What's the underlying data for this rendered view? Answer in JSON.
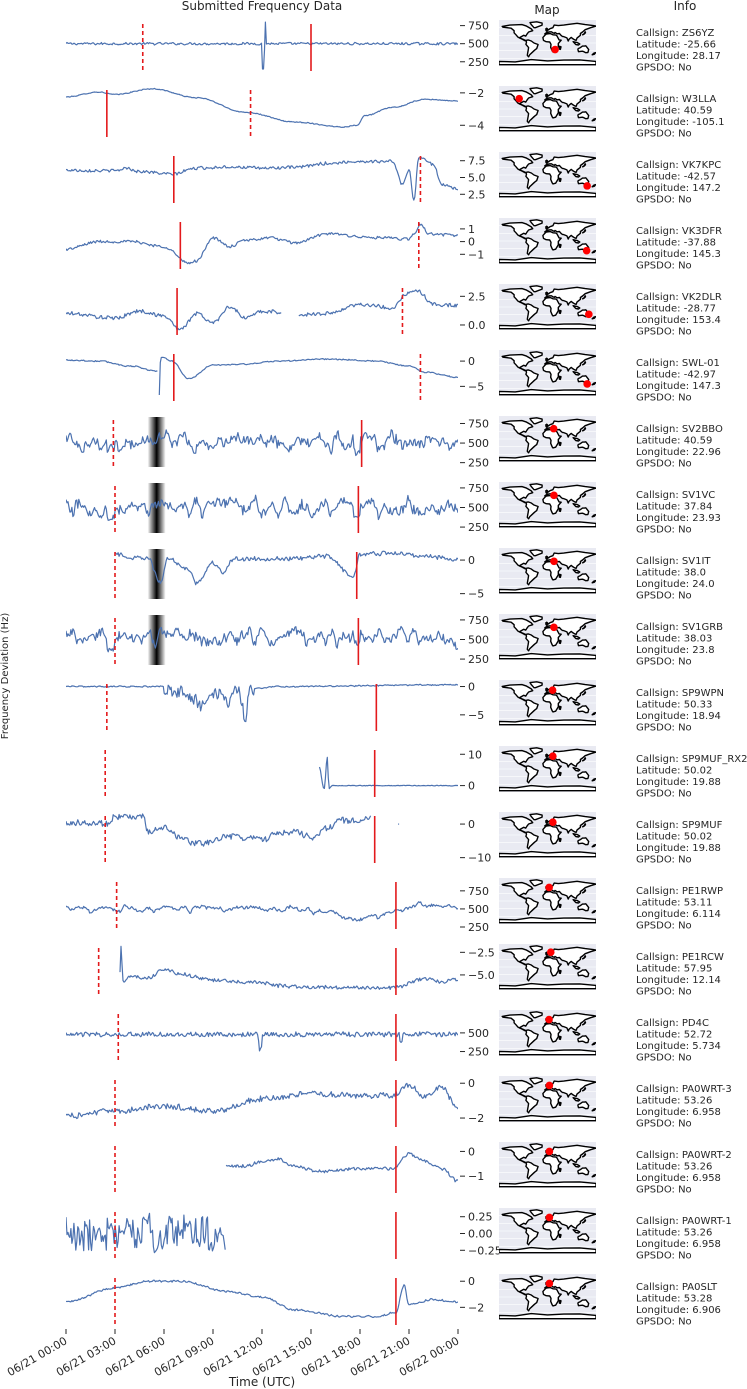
{
  "headers": {
    "title": "Submitted Frequency Data",
    "map": "Map",
    "info": "Info",
    "ylabel": "Frequency Deviation (Hz)",
    "xlabel": "Time (UTC)"
  },
  "colors": {
    "line": "#4c72b0",
    "solid_marker": "#e31a1c",
    "dashed_marker": "#e31a1c",
    "map_bg": "#e9eaf2",
    "station_dot": "#ff0000"
  },
  "chart_data": {
    "type": "line",
    "title": "Submitted Frequency Data",
    "xlabel": "Time (UTC)",
    "ylabel": "Frequency Deviation (Hz)",
    "x_range": [
      "06/21 00:00",
      "06/22 00:00"
    ],
    "x_ticks": [
      "06/21 00:00",
      "06/21 03:00",
      "06/21 06:00",
      "06/21 09:00",
      "06/21 12:00",
      "06/21 15:00",
      "06/21 18:00",
      "06/21 21:00",
      "06/22 00:00"
    ],
    "grid": false,
    "stations": [
      {
        "callsign": "ZS6YZ",
        "lat": "-25.66",
        "lon": "28.17",
        "gpsdo": "No",
        "ylim": [
          150,
          800
        ],
        "yticks": [
          "750",
          "500",
          "250"
        ],
        "ytick_values": [
          750,
          500,
          250
        ],
        "solid_hour": 15.0,
        "dashed_hour": 4.7,
        "profile": "flat500",
        "shading": null
      },
      {
        "callsign": "W3LLA",
        "lat": "40.59",
        "lon": "-105.1",
        "gpsdo": "No",
        "ylim": [
          -4.6,
          -1.7
        ],
        "yticks": [
          "−2",
          "−4"
        ],
        "ytick_values": [
          -2,
          -4
        ],
        "solid_hour": 2.5,
        "dashed_hour": 11.3,
        "profile": "w3lla",
        "shading": null
      },
      {
        "callsign": "VK7KPC",
        "lat": "-42.57",
        "lon": "147.2",
        "gpsdo": "No",
        "ylim": [
          1.5,
          8.5
        ],
        "yticks": [
          "7.5",
          "5.0",
          "2.5"
        ],
        "ytick_values": [
          7.5,
          5.0,
          2.5
        ],
        "solid_hour": 6.6,
        "dashed_hour": 21.7,
        "profile": "vk7kpc",
        "shading": null
      },
      {
        "callsign": "VK3DFR",
        "lat": "-37.88",
        "lon": "145.3",
        "gpsdo": "No",
        "ylim": [
          -2.0,
          1.7
        ],
        "yticks": [
          "1",
          "0",
          "−1"
        ],
        "ytick_values": [
          1,
          0,
          -1
        ],
        "solid_hour": 7.0,
        "dashed_hour": 21.6,
        "profile": "vk3dfr",
        "shading": null
      },
      {
        "callsign": "VK2DLR",
        "lat": "-28.77",
        "lon": "153.4",
        "gpsdo": "No",
        "ylim": [
          -0.7,
          3.4
        ],
        "yticks": [
          "2.5",
          "0.0"
        ],
        "ytick_values": [
          2.5,
          0.0
        ],
        "solid_hour": 6.8,
        "dashed_hour": 20.6,
        "profile": "vk2dlr",
        "shading": null
      },
      {
        "callsign": "SWL-01",
        "lat": "-42.97",
        "lon": "147.3",
        "gpsdo": "No",
        "ylim": [
          -7.5,
          1.8
        ],
        "yticks": [
          "0",
          "−5"
        ],
        "ytick_values": [
          0,
          -5
        ],
        "solid_hour": 6.6,
        "dashed_hour": 21.7,
        "profile": "swl01",
        "shading": null
      },
      {
        "callsign": "SV2BBO",
        "lat": "40.59",
        "lon": "22.96",
        "gpsdo": "No",
        "ylim": [
          220,
          820
        ],
        "yticks": [
          "750",
          "500",
          "250"
        ],
        "ytick_values": [
          750,
          500,
          250
        ],
        "solid_hour": 18.1,
        "dashed_hour": 2.9,
        "profile": "sv",
        "shading": [
          5.0,
          6.1
        ]
      },
      {
        "callsign": "SV1VC",
        "lat": "37.84",
        "lon": "23.93",
        "gpsdo": "No",
        "ylim": [
          200,
          800
        ],
        "yticks": [
          "750",
          "500",
          "250"
        ],
        "ytick_values": [
          750,
          500,
          250
        ],
        "solid_hour": 17.9,
        "dashed_hour": 3.0,
        "profile": "sv",
        "shading": [
          5.0,
          6.1
        ]
      },
      {
        "callsign": "SV1IT",
        "lat": "38.0",
        "lon": "24.0",
        "gpsdo": "No",
        "ylim": [
          -5.5,
          1.5
        ],
        "yticks": [
          "0",
          "−5"
        ],
        "ytick_values": [
          0,
          -5
        ],
        "solid_hour": 17.8,
        "dashed_hour": 3.0,
        "profile": "sv1it",
        "shading": [
          5.0,
          6.1
        ]
      },
      {
        "callsign": "SV1GRB",
        "lat": "38.03",
        "lon": "23.8",
        "gpsdo": "No",
        "ylim": [
          200,
          800
        ],
        "yticks": [
          "750",
          "500",
          "250"
        ],
        "ytick_values": [
          750,
          500,
          250
        ],
        "solid_hour": 17.9,
        "dashed_hour": 3.0,
        "profile": "sv",
        "shading": [
          5.0,
          6.1
        ]
      },
      {
        "callsign": "SP9WPN",
        "lat": "50.33",
        "lon": "18.94",
        "gpsdo": "No",
        "ylim": [
          -7.5,
          0.8
        ],
        "yticks": [
          "0",
          "−5"
        ],
        "ytick_values": [
          0,
          -5
        ],
        "solid_hour": 19.0,
        "dashed_hour": 2.5,
        "profile": "sp9wpn",
        "shading": null
      },
      {
        "callsign": "SP9MUF_RX2",
        "lat": "50.02",
        "lon": "19.88",
        "gpsdo": "No",
        "ylim": [
          -3,
          12
        ],
        "yticks": [
          "10",
          "0"
        ],
        "ytick_values": [
          10,
          0
        ],
        "solid_hour": 18.9,
        "dashed_hour": 2.4,
        "profile": "sp9mufrx2",
        "shading": null
      },
      {
        "callsign": "SP9MUF",
        "lat": "50.02",
        "lon": "19.88",
        "gpsdo": "No",
        "ylim": [
          -11,
          3
        ],
        "yticks": [
          "0",
          "−10"
        ],
        "ytick_values": [
          0,
          -10
        ],
        "solid_hour": 18.9,
        "dashed_hour": 2.4,
        "profile": "sp9muf",
        "shading": null
      },
      {
        "callsign": "PE1RWP",
        "lat": "53.11",
        "lon": "6.114",
        "gpsdo": "No",
        "ylim": [
          250,
          900
        ],
        "yticks": [
          "750",
          "500",
          "250"
        ],
        "ytick_values": [
          750,
          500,
          250
        ],
        "solid_hour": 20.2,
        "dashed_hour": 3.1,
        "profile": "pe1rwp",
        "shading": null
      },
      {
        "callsign": "PE1RCW",
        "lat": "57.95",
        "lon": "12.14",
        "gpsdo": "No",
        "ylim": [
          -7.0,
          -1.8
        ],
        "yticks": [
          "−2.5",
          "−5.0"
        ],
        "ytick_values": [
          -2.5,
          -5.0
        ],
        "solid_hour": 20.2,
        "dashed_hour": 2.0,
        "profile": "pe1rcw",
        "shading": null
      },
      {
        "callsign": "PD4C",
        "lat": "52.72",
        "lon": "5.734",
        "gpsdo": "No",
        "ylim": [
          150,
          780
        ],
        "yticks": [
          "500",
          "250"
        ],
        "ytick_values": [
          500,
          250
        ],
        "solid_hour": 20.2,
        "dashed_hour": 3.2,
        "profile": "pd4c",
        "shading": null
      },
      {
        "callsign": "PA0WRT-3",
        "lat": "53.26",
        "lon": "6.958",
        "gpsdo": "No",
        "ylim": [
          -2.4,
          0.3
        ],
        "yticks": [
          "0",
          "−2"
        ],
        "ytick_values": [
          0,
          -2
        ],
        "solid_hour": 20.2,
        "dashed_hour": 3.0,
        "profile": "pa0wrt3",
        "shading": null
      },
      {
        "callsign": "PA0WRT-2",
        "lat": "53.26",
        "lon": "6.958",
        "gpsdo": "No",
        "ylim": [
          -1.6,
          0.3
        ],
        "yticks": [
          "0",
          "−1"
        ],
        "ytick_values": [
          0,
          -1
        ],
        "solid_hour": 20.2,
        "dashed_hour": 3.0,
        "profile": "pa0wrt2",
        "shading": null
      },
      {
        "callsign": "PA0WRT-1",
        "lat": "53.26",
        "lon": "6.958",
        "gpsdo": "No",
        "ylim": [
          -0.35,
          0.35
        ],
        "yticks": [
          "0.25",
          "0.00",
          "−0.25"
        ],
        "ytick_values": [
          0.25,
          0.0,
          -0.25
        ],
        "solid_hour": 20.2,
        "dashed_hour": 3.0,
        "profile": "pa0wrt1",
        "shading": null
      },
      {
        "callsign": "PA0SLT",
        "lat": "53.28",
        "lon": "6.906",
        "gpsdo": "No",
        "ylim": [
          -3.2,
          0.4
        ],
        "yticks": [
          "0",
          "−2"
        ],
        "ytick_values": [
          0,
          -2
        ],
        "solid_hour": 20.2,
        "dashed_hour": 3.0,
        "profile": "pa0slt",
        "shading": null
      }
    ]
  }
}
